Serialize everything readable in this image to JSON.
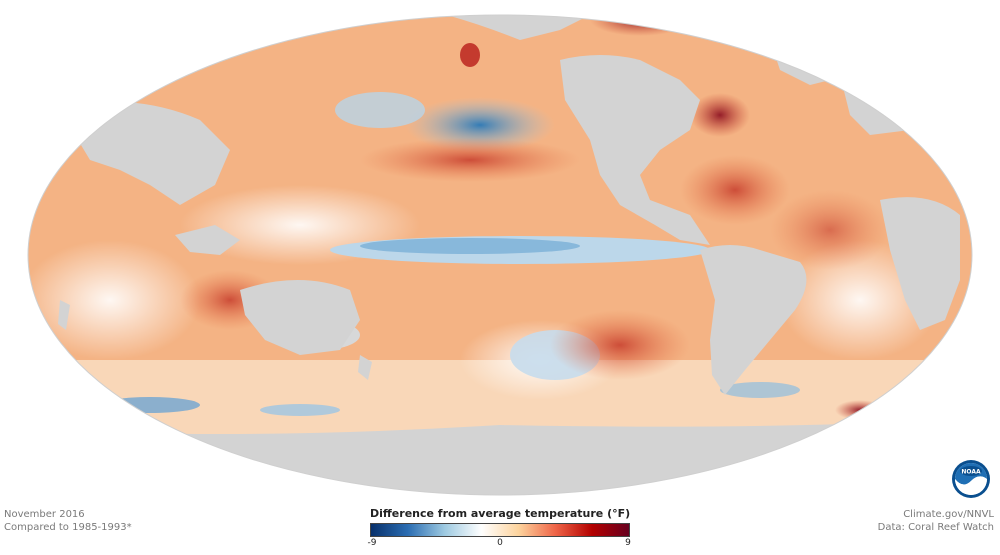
{
  "map": {
    "projection": "Mollweide",
    "ocean_anomaly_palette": [
      "#0c3a75",
      "#3f8ac4",
      "#bfdaec",
      "#ffffff",
      "#f6c58f",
      "#e0693b",
      "#b2182b",
      "#67001f"
    ],
    "land_color": "#d3d3d3",
    "warm_color": "#f2a672",
    "cool_color": "#4c93c8"
  },
  "footer": {
    "date_label": "November 2016",
    "baseline_label": "Compared to 1985-1993*",
    "credit_label": "Climate.gov/NNVL",
    "data_source_label": "Data: Coral Reef Watch"
  },
  "legend": {
    "title": "Difference from average temperature (°F)",
    "min_label": "-9",
    "mid_label": "0",
    "max_label": "9",
    "range": [
      -9,
      9
    ],
    "gradient": [
      "#08306b",
      "#2b6db2",
      "#9ecae1",
      "#ffffff",
      "#fdd49e",
      "#ef6548",
      "#b30000",
      "#67001f"
    ]
  },
  "logo": {
    "icon": "noaa-logo-icon",
    "text": "NOAA"
  }
}
